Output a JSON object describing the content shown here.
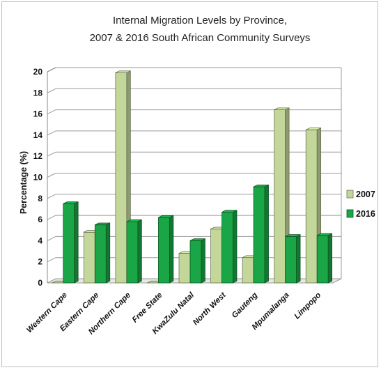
{
  "chart_data": {
    "type": "bar",
    "title_line1": "Internal Migration Levels by Province,",
    "title_line2": "2007 & 2016 South African Community Surveys",
    "xlabel": "",
    "ylabel": "Percentage (%)",
    "ylim": [
      0,
      20
    ],
    "yticks": [
      "0",
      "2",
      "4",
      "6",
      "8",
      "10",
      "12",
      "14",
      "16",
      "18",
      "20"
    ],
    "grid": true,
    "legend_position": "right",
    "categories": [
      "Western Cape",
      "Eastern Cape",
      "Northern Cape",
      "Free State",
      "KwaZulu Natal",
      "North West",
      "Gauteng",
      "Mpumalanga",
      "Limpopo"
    ],
    "series": [
      {
        "name": "2007",
        "color": "#c4d79b",
        "values": [
          0,
          4.8,
          19.9,
          0,
          2.8,
          5.1,
          2.4,
          16.4,
          14.5
        ]
      },
      {
        "name": "2016",
        "color": "#1aa546",
        "values": [
          7.5,
          5.5,
          5.8,
          6.2,
          4.0,
          6.7,
          9.1,
          4.4,
          4.5
        ]
      }
    ]
  }
}
